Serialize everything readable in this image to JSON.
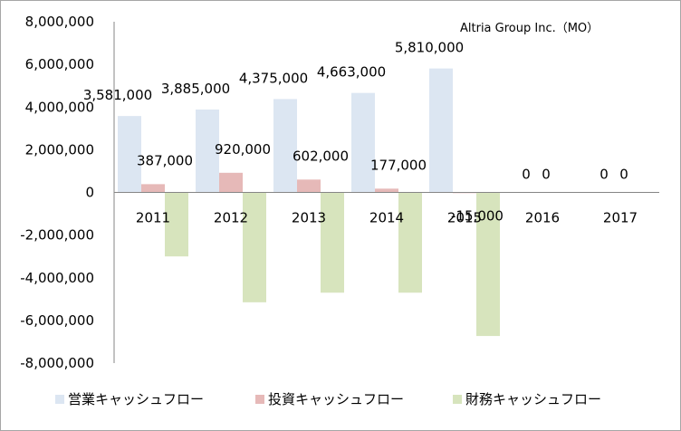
{
  "chart_data": {
    "type": "bar",
    "title": "",
    "annotation": "Altria Group Inc.（MO）",
    "xlabel": "",
    "ylabel": "",
    "ylim": [
      -8000000,
      8000000
    ],
    "ytick_step": 2000000,
    "ytick_labels": [
      "8,000,000",
      "6,000,000",
      "4,000,000",
      "2,000,000",
      "0",
      "-2,000,000",
      "-4,000,000",
      "-6,000,000",
      "-8,000,000"
    ],
    "categories": [
      "2011",
      "2012",
      "2013",
      "2014",
      "2015",
      "2016",
      "2017"
    ],
    "series": [
      {
        "name": "営業キャッシュフロー",
        "color": "#dce6f2",
        "values": [
          3581000,
          3885000,
          4375000,
          4663000,
          5810000,
          0,
          0
        ],
        "labels": [
          "3,581,000",
          "3,885,000",
          "4,375,000",
          "4,663,000",
          "5,810,000",
          "0",
          "0"
        ]
      },
      {
        "name": "投資キャッシュフロー",
        "color": "#e6b9b8",
        "values": [
          387000,
          920000,
          602000,
          177000,
          -15000,
          0,
          0
        ],
        "labels": [
          "387,000",
          "920,000",
          "602,000",
          "177,000",
          "-15,000",
          "0",
          "0"
        ]
      },
      {
        "name": "財務キャッシュフロー",
        "color": "#d7e4bd",
        "values": [
          -3000000,
          -5150000,
          -4700000,
          -4700000,
          -6730000,
          0,
          0
        ],
        "labels": []
      }
    ],
    "legend_position": "bottom"
  }
}
